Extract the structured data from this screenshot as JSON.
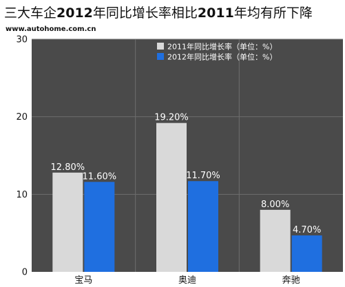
{
  "header": {
    "title_parts": [
      "三大车企",
      "2012",
      "年同比增长率相比",
      "2011",
      "年均有所下降"
    ],
    "site": "www.autohome.com.cn"
  },
  "chart_data": {
    "type": "bar",
    "categories": [
      "宝马",
      "奥迪",
      "奔驰"
    ],
    "series": [
      {
        "name": "2011年同比增长率（单位：%）",
        "values": [
          12.8,
          19.2,
          8.0
        ],
        "labels": [
          "12.80%",
          "19.20%",
          "8.00%"
        ],
        "color": "#d9d9d9"
      },
      {
        "name": "2012年同比增长率（单位：%）",
        "values": [
          11.6,
          11.7,
          4.7
        ],
        "labels": [
          "11.60%",
          "11.70%",
          "4.70%"
        ],
        "color": "#1f6fe0"
      }
    ],
    "ylim": [
      0,
      30
    ],
    "yticks": [
      "0",
      "10",
      "20",
      "30"
    ],
    "ytick_values": [
      0,
      10,
      20,
      30
    ],
    "grid": true,
    "legend": "top-right",
    "plot_background": "#4a4a4a",
    "grid_color": "#6e6e6e"
  }
}
